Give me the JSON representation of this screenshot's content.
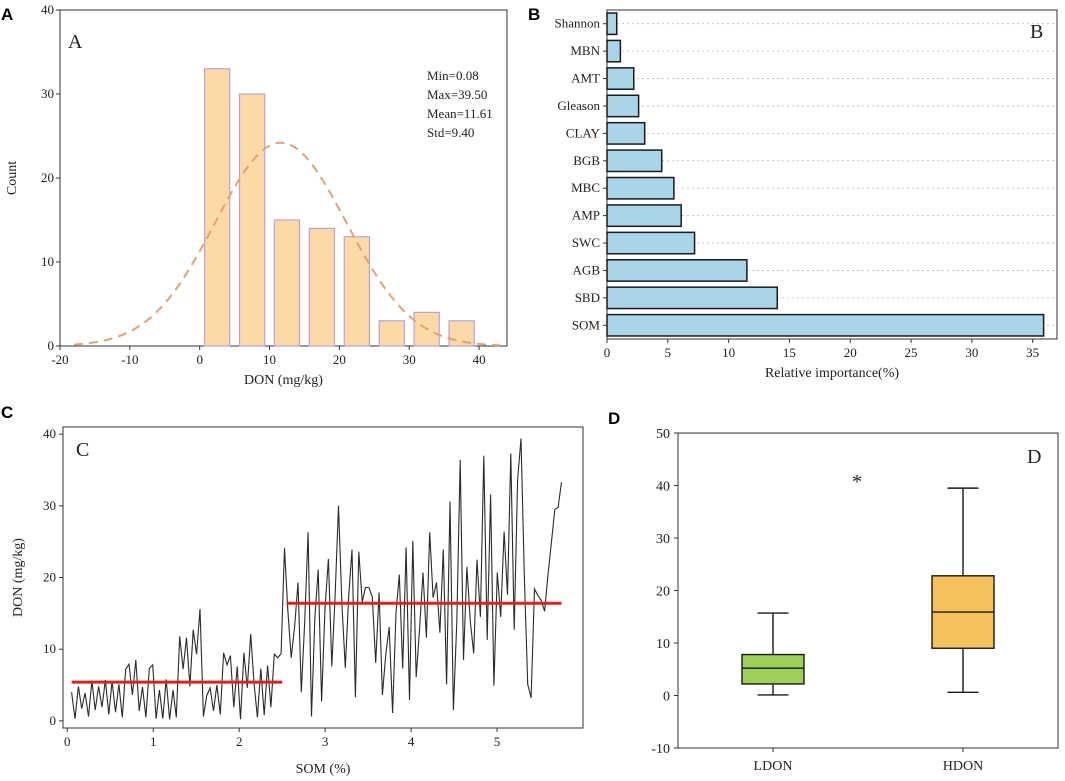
{
  "chart_data": [
    {
      "panel": "A",
      "type": "bar",
      "inset_label": "A",
      "xlabel": "DON (mg/kg)",
      "ylabel": "Count",
      "xlim": [
        -20,
        44
      ],
      "ylim": [
        0,
        40
      ],
      "x_ticks": [
        -20,
        -10,
        0,
        10,
        20,
        30,
        40
      ],
      "y_ticks": [
        0,
        10,
        20,
        30,
        40
      ],
      "bins": [
        {
          "center": 2.5,
          "value": 33
        },
        {
          "center": 7.5,
          "value": 30
        },
        {
          "center": 12.5,
          "value": 15
        },
        {
          "center": 17.5,
          "value": 14
        },
        {
          "center": 22.5,
          "value": 13
        },
        {
          "center": 27.5,
          "value": 3
        },
        {
          "center": 32.5,
          "value": 4
        },
        {
          "center": 37.5,
          "value": 3
        }
      ],
      "bin_width": 5,
      "fit_curve": {
        "type": "normal",
        "mean": 11.61,
        "sd": 9.4,
        "peak": 24.2
      },
      "stats": [
        "Min=0.08",
        "Max=39.50",
        "Mean=11.61",
        "Std=9.40"
      ],
      "colors": {
        "bar_fill": "#fdd9a8",
        "bar_edge": "#b9a3d9",
        "curve": "#e0a278"
      }
    },
    {
      "panel": "B",
      "type": "bar",
      "orientation": "horizontal",
      "inset_label": "B",
      "xlabel": "Relative importance(%)",
      "ylabel": "",
      "xlim": [
        0,
        37
      ],
      "x_ticks": [
        0,
        5,
        10,
        15,
        20,
        25,
        30,
        35
      ],
      "categories": [
        "Shannon",
        "MBN",
        "AMT",
        "Gleason",
        "CLAY",
        "BGB",
        "MBC",
        "AMP",
        "SWC",
        "AGB",
        "SBD",
        "SOM"
      ],
      "values": [
        0.8,
        1.1,
        2.2,
        2.6,
        3.1,
        4.5,
        5.5,
        6.1,
        7.2,
        11.5,
        14.0,
        35.9
      ],
      "colors": {
        "bar_fill": "#a8d5e8",
        "bar_edge": "#1a1a1a"
      }
    },
    {
      "panel": "C",
      "type": "line",
      "inset_label": "C",
      "xlabel": "SOM (%)",
      "ylabel": "DON (mg/kg)",
      "xlim": [
        -0.05,
        6.0
      ],
      "ylim": [
        -1,
        41
      ],
      "x_ticks": [
        0,
        1,
        2,
        3,
        4,
        5
      ],
      "y_ticks": [
        0,
        10,
        20,
        30,
        40
      ],
      "series": [
        {
          "name": "DON",
          "x_start": 0.05,
          "x_end": 5.75,
          "values": [
            4,
            0.3,
            4.8,
            1.7,
            3.9,
            0.6,
            5.6,
            1.5,
            4.8,
            1.9,
            5.7,
            0.9,
            5.5,
            1.2,
            5.1,
            0.5,
            7.2,
            7.9,
            3.6,
            8.5,
            1.4,
            4.7,
            0.5,
            7.3,
            7.8,
            0.3,
            4.3,
            0.3,
            5.8,
            0.2,
            4.3,
            0.5,
            11.8,
            7.2,
            11.6,
            4.8,
            12.7,
            9.3,
            15.6,
            0.6,
            3.5,
            4.6,
            1.4,
            5,
            0.9,
            9.5,
            7.8,
            9.1,
            1.9,
            7.6,
            0.2,
            9.5,
            4.6,
            12.1,
            5.3,
            0.5,
            7.3,
            0.8,
            7.7,
            1.9,
            9.3,
            8.8,
            9.4,
            24.1,
            15.5,
            8.8,
            13.1,
            19.3,
            4,
            13.8,
            26.3,
            0.6,
            14.5,
            21.1,
            2.7,
            15.7,
            22.6,
            7.6,
            17.4,
            30,
            16.3,
            7.4,
            17.4,
            23.9,
            3.3,
            23.6,
            16.6,
            18.6,
            18.6,
            17.3,
            8.1,
            17.9,
            3.6,
            9.3,
            13.1,
            1.1,
            15.1,
            20.4,
            7.3,
            24.2,
            2.9,
            25.1,
            6.1,
            12.9,
            20.7,
            11.6,
            26.3,
            17.2,
            19.3,
            12.3,
            23.9,
            5.1,
            30.6,
            1.5,
            13.8,
            36.4,
            8.5,
            21.5,
            13.9,
            9.4,
            22.5,
            14.5,
            37,
            11.3,
            31.6,
            4.9,
            20.7,
            14.5,
            26.4,
            17.6,
            37.3,
            12.7,
            33.6,
            39.4,
            20.4,
            5.1,
            3.2,
            18.4,
            17.5,
            16.8,
            15.3,
            20.4,
            24.9,
            29.5,
            29.8,
            33.3
          ]
        }
      ],
      "segments": [
        {
          "x_start": 0.05,
          "x_end": 2.5,
          "y": 5.4
        },
        {
          "x_start": 2.55,
          "x_end": 5.75,
          "y": 16.4
        }
      ],
      "colors": {
        "line": "#2a2a2a",
        "segment": "#e02020"
      }
    },
    {
      "panel": "D",
      "type": "box",
      "inset_label": "D",
      "xlabel": "",
      "ylabel": "",
      "ylim": [
        -10,
        50
      ],
      "y_ticks": [
        -10,
        0,
        10,
        20,
        30,
        40,
        50
      ],
      "categories": [
        "LDON",
        "HDON"
      ],
      "boxes": [
        {
          "name": "LDON",
          "min": 0.1,
          "q1": 2.2,
          "median": 5.2,
          "q3": 7.8,
          "max": 15.7
        },
        {
          "name": "HDON",
          "min": 0.6,
          "q1": 9.0,
          "median": 15.9,
          "q3": 22.8,
          "max": 39.5
        }
      ],
      "annotation": "*",
      "colors": {
        "LDON": "#9dcf5a",
        "HDON": "#f5c15c",
        "edge": "#1a1a1a"
      }
    }
  ],
  "panel_labels": [
    "A",
    "B",
    "C",
    "D"
  ]
}
